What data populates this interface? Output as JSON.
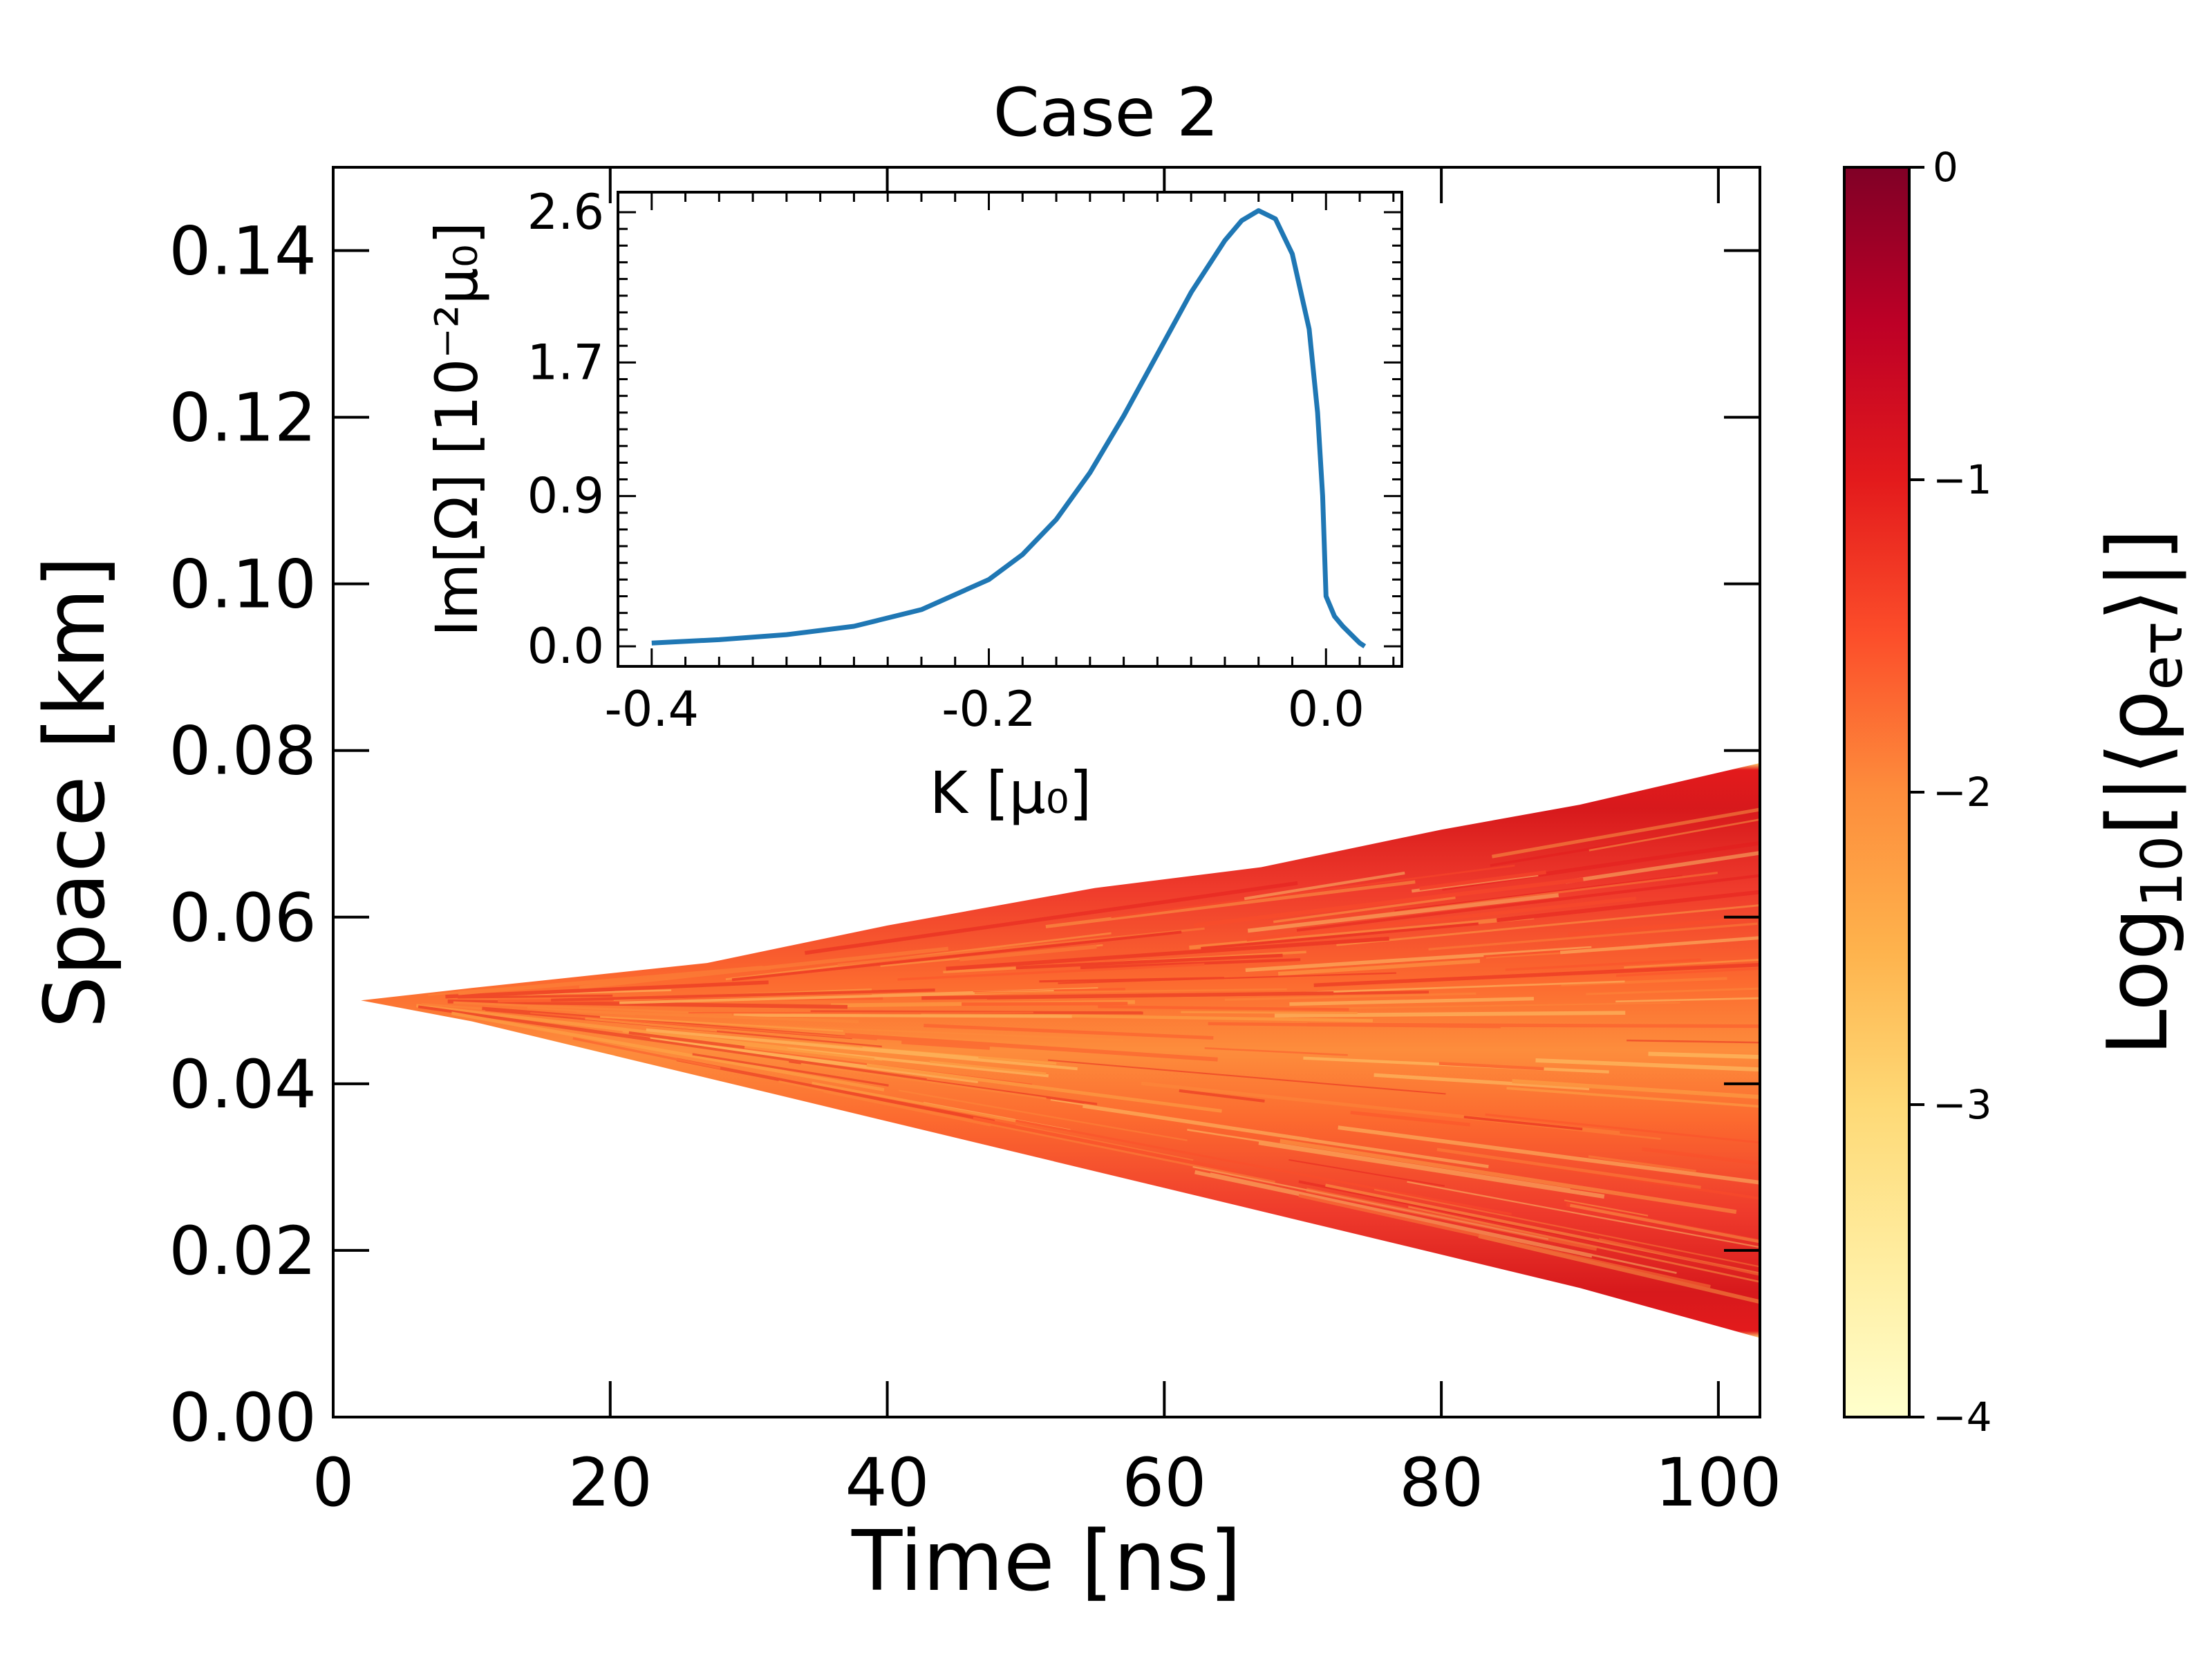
{
  "chart_data": [
    {
      "type": "heatmap",
      "title": "Case 2",
      "xlabel": "Time [ns]",
      "ylabel": "Space [km]",
      "xlim": [
        0,
        103
      ],
      "ylim": [
        0,
        0.15
      ],
      "x_ticks": [
        "0",
        "20",
        "40",
        "60",
        "80",
        "100"
      ],
      "x_tick_values": [
        0,
        20,
        40,
        60,
        80,
        100
      ],
      "y_ticks": [
        "0.00",
        "0.02",
        "0.04",
        "0.06",
        "0.08",
        "0.10",
        "0.12",
        "0.14"
      ],
      "y_tick_values": [
        0,
        0.02,
        0.04,
        0.06,
        0.08,
        0.1,
        0.12,
        0.14
      ],
      "grid": false,
      "colormap": [
        "#ffffcc",
        "#ffeda0",
        "#fed976",
        "#feb24c",
        "#fd8d3c",
        "#fc4e2a",
        "#e31a1c",
        "#bd0026",
        "#800026"
      ],
      "colorbar": {
        "label_base": "Log",
        "label_sub": "10",
        "label_rest": "[|⟨ρ",
        "label_sub2": "eτ",
        "label_end": "⟩|]",
        "range": [
          -4,
          0
        ],
        "ticks": [
          "0",
          "−1",
          "−2",
          "−3",
          "−4"
        ],
        "tick_values": [
          0,
          -1,
          -2,
          -3,
          -4
        ]
      },
      "front": {
        "origin": [
          2,
          0.05
        ],
        "upper_edge": [
          [
            2,
            0.05
          ],
          [
            10,
            0.0515
          ],
          [
            27,
            0.0545
          ],
          [
            40,
            0.059
          ],
          [
            55,
            0.0635
          ],
          [
            67,
            0.066
          ],
          [
            80,
            0.0705
          ],
          [
            90,
            0.0735
          ],
          [
            103,
            0.0785
          ]
        ],
        "lower_edge": [
          [
            2,
            0.05
          ],
          [
            10,
            0.0475
          ],
          [
            30,
            0.0395
          ],
          [
            50,
            0.0315
          ],
          [
            70,
            0.0235
          ],
          [
            90,
            0.0155
          ],
          [
            103,
            0.0095
          ]
        ]
      }
    },
    {
      "type": "line",
      "xlabel": "K [μ₀]",
      "ylabel": "Im[Ω] [10⁻²μ₀]",
      "xlim": [
        -0.42,
        0.045
      ],
      "ylim": [
        -0.12,
        2.72
      ],
      "x_ticks": [
        "-0.4",
        "-0.2",
        "0.0"
      ],
      "x_tick_values": [
        -0.4,
        -0.2,
        0.0
      ],
      "y_ticks": [
        "0.0",
        "0.9",
        "1.7",
        "2.6"
      ],
      "y_tick_values": [
        0.0,
        0.9,
        1.7,
        2.6
      ],
      "series": [
        {
          "color": "#1f77b4",
          "x": [
            -0.4,
            -0.36,
            -0.32,
            -0.28,
            -0.24,
            -0.2,
            -0.18,
            -0.16,
            -0.14,
            -0.12,
            -0.1,
            -0.08,
            -0.06,
            -0.05,
            -0.04,
            -0.03,
            -0.02,
            -0.01,
            -0.005,
            -0.002,
            0.0,
            0.005,
            0.01,
            0.015,
            0.02,
            0.023
          ],
          "y": [
            0.02,
            0.04,
            0.07,
            0.12,
            0.22,
            0.4,
            0.55,
            0.76,
            1.04,
            1.38,
            1.75,
            2.12,
            2.43,
            2.55,
            2.61,
            2.56,
            2.35,
            1.9,
            1.4,
            0.9,
            0.3,
            0.18,
            0.12,
            0.07,
            0.02,
            0.0
          ]
        }
      ]
    }
  ]
}
